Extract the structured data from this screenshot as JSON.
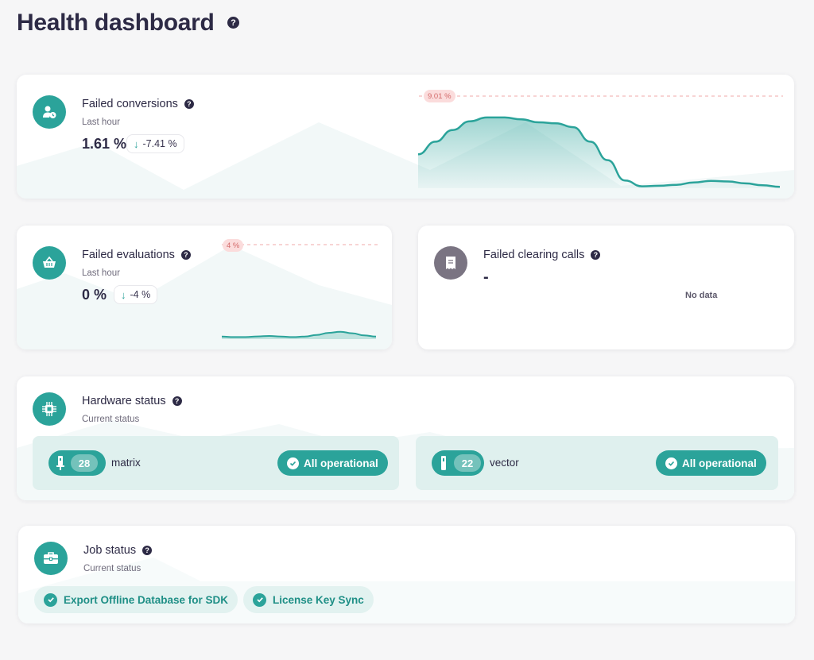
{
  "page": {
    "title": "Health dashboard",
    "help_glyph": "?"
  },
  "colors": {
    "accent": "#2ba39a",
    "accent_light": "#dff0ee",
    "text_dark": "#2d2a45",
    "peak_label_bg": "#fbdcdc",
    "peak_label_text": "#d36a6a",
    "neutral_icon": "#7a7482"
  },
  "failed_conversions": {
    "title": "Failed conversions",
    "icon": "user-clock-icon",
    "period": "Last hour",
    "value": "1.61 %",
    "trend_arrow": "↓",
    "trend_value": "-7.41 %",
    "peak_label": "9.01 %",
    "chart_data": {
      "type": "area",
      "title": "Failed conversions",
      "y_unit": "%",
      "peak_threshold": 9.01,
      "ylim": [
        0,
        9.5
      ],
      "values": [
        3.5,
        4.8,
        6.0,
        6.9,
        7.3,
        7.3,
        7.1,
        6.8,
        6.7,
        6.3,
        4.8,
        2.9,
        0.8,
        0.2,
        0.25,
        0.35,
        0.6,
        0.75,
        0.7,
        0.5,
        0.3,
        0.15
      ]
    }
  },
  "failed_evaluations": {
    "title": "Failed evaluations",
    "icon": "basket-icon",
    "period": "Last hour",
    "value": "0 %",
    "trend_arrow": "↓",
    "trend_value": "-4 %",
    "peak_label": "4 %",
    "chart_data": {
      "type": "area",
      "title": "Failed evaluations",
      "y_unit": "%",
      "peak_threshold": 4,
      "ylim": [
        0,
        4.5
      ],
      "values": [
        0.12,
        0.1,
        0.1,
        0.13,
        0.15,
        0.12,
        0.1,
        0.12,
        0.2,
        0.3,
        0.35,
        0.28,
        0.18,
        0.12
      ]
    }
  },
  "failed_clearing_calls": {
    "title": "Failed clearing calls",
    "icon": "receipt-icon",
    "value": "-",
    "no_data_label": "No data"
  },
  "hardware_status": {
    "title": "Hardware status",
    "icon": "chip-icon",
    "subtitle": "Current status",
    "devices": [
      {
        "name": "matrix",
        "count": "28",
        "icon": "device-icon",
        "status": "All operational"
      },
      {
        "name": "vector",
        "count": "22",
        "icon": "device-icon",
        "status": "All operational"
      }
    ]
  },
  "job_status": {
    "title": "Job status",
    "icon": "briefcase-icon",
    "subtitle": "Current status",
    "jobs": [
      {
        "name": "Export Offline Database for SDK",
        "icon": "check-icon"
      },
      {
        "name": "License Key Sync",
        "icon": "check-icon"
      }
    ]
  }
}
